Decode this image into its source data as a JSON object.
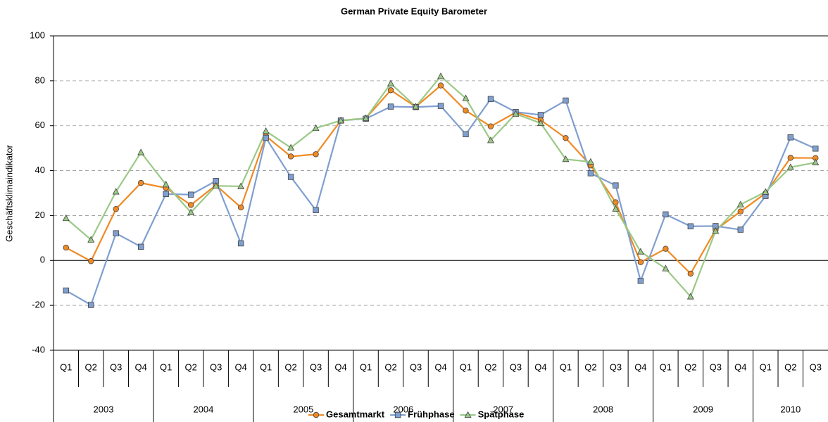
{
  "chart_data": {
    "type": "line",
    "title": "German Private Equity Barometer",
    "ylabel": "Geschäftsklimaindikator",
    "categories": [
      "Q1",
      "Q2",
      "Q3",
      "Q4",
      "Q1",
      "Q2",
      "Q3",
      "Q4",
      "Q1",
      "Q2",
      "Q3",
      "Q4",
      "Q1",
      "Q2",
      "Q3",
      "Q4",
      "Q1",
      "Q2",
      "Q3",
      "Q4",
      "Q1",
      "Q2",
      "Q3",
      "Q4",
      "Q1",
      "Q2",
      "Q3",
      "Q4",
      "Q1",
      "Q2",
      "Q3"
    ],
    "years": [
      "2003",
      "2004",
      "2005",
      "2006",
      "2007",
      "2008",
      "2009",
      "2010"
    ],
    "series": [
      {
        "name": "Gesamtmarkt",
        "color": "#f08a24",
        "marker": "circle",
        "values": [
          5.7,
          -0.3,
          22.9,
          34.5,
          32.3,
          24.7,
          33.5,
          23.6,
          55.4,
          46.3,
          47.3,
          62.3,
          63.3,
          75.8,
          68.4,
          77.9,
          66.7,
          59.7,
          65.9,
          62.5,
          54.5,
          42.3,
          25.9,
          -0.8,
          5.2,
          -5.9,
          13.6,
          21.8,
          29.9,
          45.7,
          45.6
        ]
      },
      {
        "name": "Frühphase",
        "color": "#7f9fd0",
        "marker": "square",
        "values": [
          -13.4,
          -19.8,
          12.1,
          6.1,
          29.6,
          29.3,
          35.4,
          7.6,
          54.6,
          37.2,
          22.4,
          62.3,
          63.1,
          68.5,
          68.3,
          68.8,
          56.2,
          71.9,
          66.1,
          64.8,
          71.2,
          38.8,
          33.4,
          -9.1,
          20.5,
          15.2,
          15.3,
          13.7,
          28.7,
          54.8,
          49.8
        ]
      },
      {
        "name": "Spätphase",
        "color": "#9bc987",
        "marker": "triangle",
        "values": [
          18.8,
          9.2,
          30.6,
          48.1,
          33.8,
          21.4,
          33.2,
          33.0,
          57.6,
          50.2,
          58.9,
          62.3,
          63.3,
          78.8,
          68.5,
          82.0,
          72.2,
          53.5,
          65.3,
          61.1,
          45.1,
          43.9,
          23.0,
          3.9,
          -3.6,
          -16.1,
          13.1,
          24.9,
          30.5,
          41.5,
          43.6
        ]
      }
    ],
    "ylim": [
      -40,
      100
    ],
    "yticks": [
      -40,
      -20,
      0,
      20,
      40,
      60,
      80,
      100
    ],
    "grid": true,
    "legend": "bottom"
  }
}
